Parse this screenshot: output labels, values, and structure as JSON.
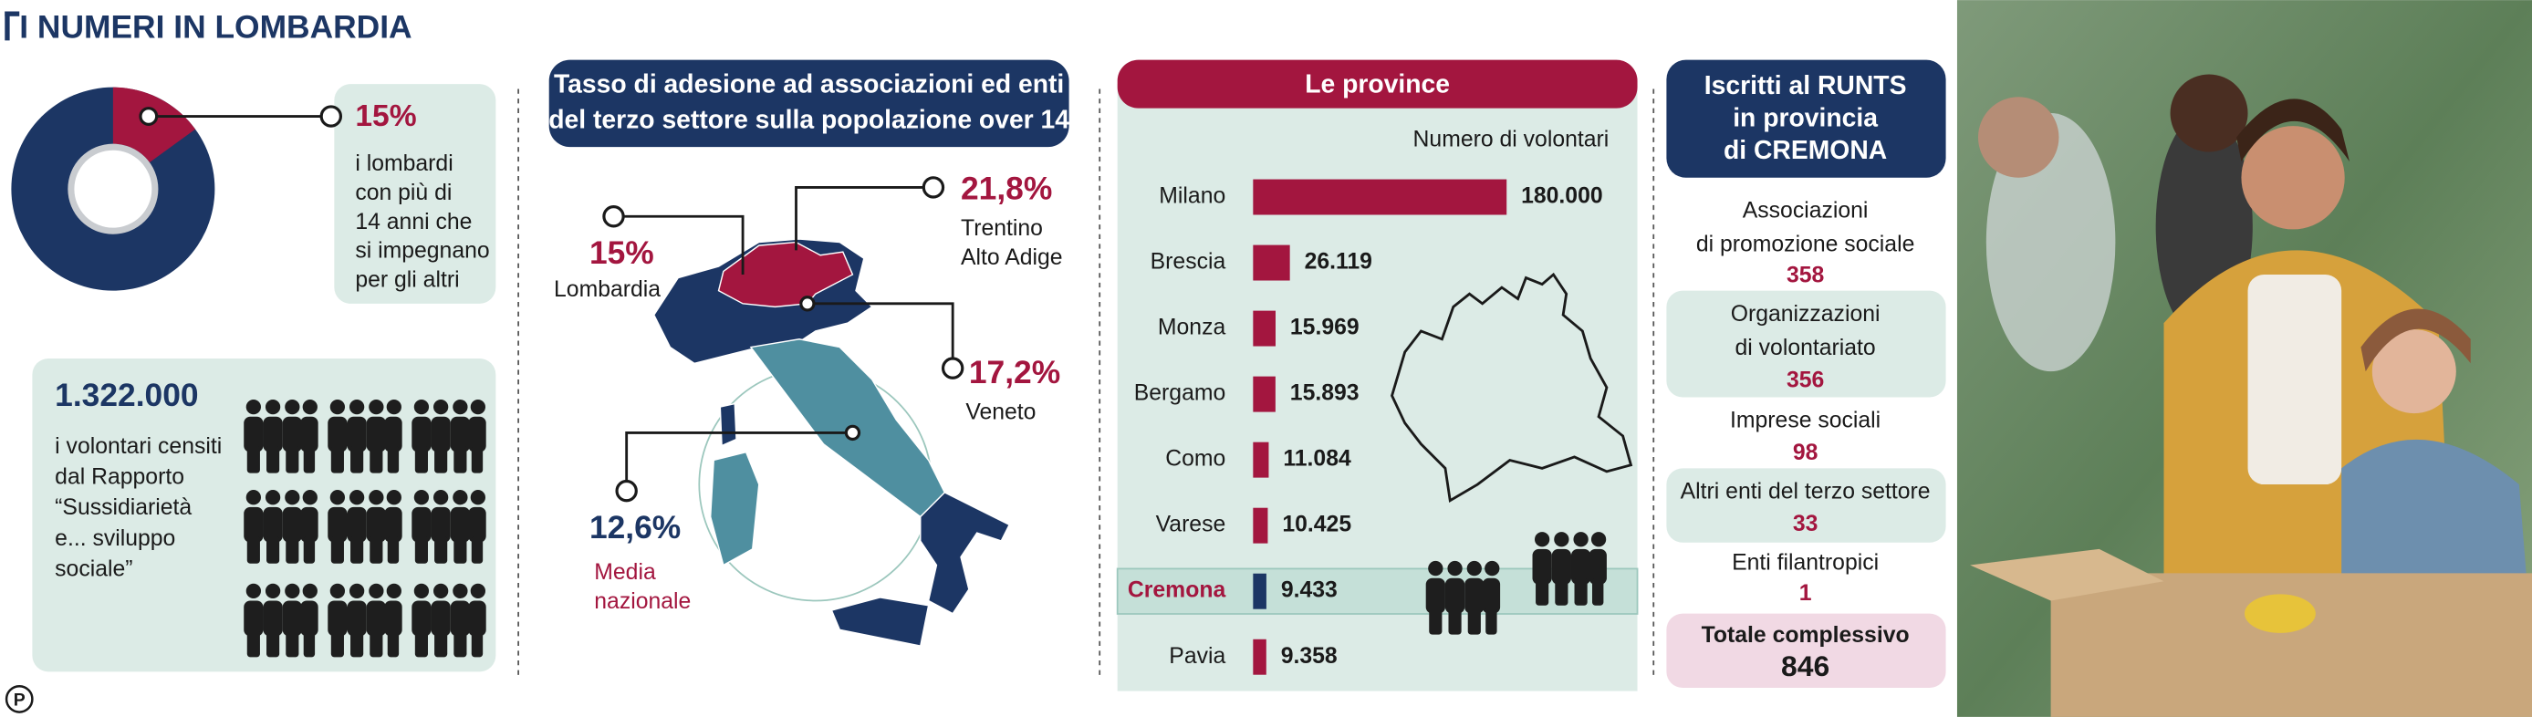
{
  "header": {
    "title": "I NUMERI IN LOMBARDIA"
  },
  "logo": "P",
  "chart_data": [
    {
      "type": "pie",
      "values": [
        15
      ],
      "value_labels": [
        "15%"
      ],
      "colors": [
        "#a3163f"
      ],
      "base_color": "#1c3664",
      "description": [
        "i lombardi",
        "con più di",
        "14 anni che",
        "si impegnano",
        "per gli altri"
      ]
    },
    {
      "type": "bar",
      "orientation": "horizontal",
      "title": "Le province",
      "subtitle": "Numero di volontari",
      "categories": [
        "Milano",
        "Brescia",
        "Monza",
        "Bergamo",
        "Como",
        "Varese",
        "Cremona",
        "Pavia"
      ],
      "values": [
        180000,
        26119,
        15969,
        15893,
        11084,
        10425,
        9433,
        9358
      ],
      "value_labels": [
        "180.000",
        "26.119",
        "15.969",
        "15.893",
        "11.084",
        "10.425",
        "9.433",
        "9.358"
      ],
      "color": "#a3163f",
      "highlight": {
        "category": "Cremona",
        "color": "#1c3664"
      }
    }
  ],
  "volunteers": {
    "figure": "1.322.000",
    "lines": [
      "i volontari censiti",
      "dal Rapporto",
      "“Sussidiarietà",
      "e... sviluppo",
      "sociale”"
    ]
  },
  "map": {
    "title": [
      "Tasso di adesione ad associazioni ed enti",
      "del terzo settore sulla popolazione over 14"
    ],
    "labels": [
      {
        "value": "21,8%",
        "name": [
          "Trentino",
          "Alto Adige"
        ]
      },
      {
        "value": "15%",
        "name": [
          "Lombardia"
        ]
      },
      {
        "value": "17,2%",
        "name": [
          "Veneto"
        ]
      },
      {
        "value": "12,6%",
        "name": [
          "Media",
          "nazionale"
        ]
      }
    ]
  },
  "runts": {
    "title": [
      "Iscritti al RUNTS",
      "in provincia",
      "di CREMONA"
    ],
    "items": [
      {
        "name": [
          "Associazioni",
          "di promozione sociale"
        ],
        "count": 358
      },
      {
        "name": [
          "Organizzazioni",
          "di volontariato"
        ],
        "count": 356
      },
      {
        "name": [
          "Imprese sociali"
        ],
        "count": 98
      },
      {
        "name": [
          "Altri enti del terzo settore"
        ],
        "count": 33
      },
      {
        "name": [
          "Enti filantropici"
        ],
        "count": 1
      }
    ],
    "total": {
      "name": "Totale complessivo",
      "count": 846
    }
  }
}
